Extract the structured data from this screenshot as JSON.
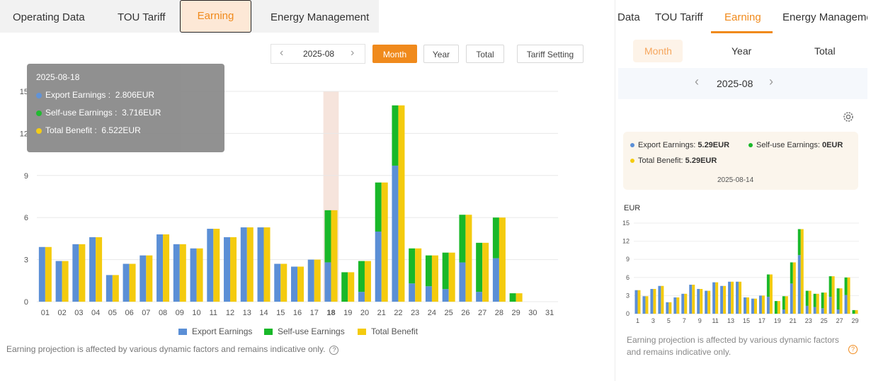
{
  "tabs": [
    "Operating Data",
    "TOU Tariff",
    "Earning",
    "Energy Management"
  ],
  "controls": {
    "prev": "‹",
    "month_value": "2025-08",
    "next": "›",
    "month": "Month",
    "year": "Year",
    "total": "Total",
    "tariff_setting": "Tariff Setting"
  },
  "tooltip": {
    "date": "2025-08-18",
    "export_label": "Export Earnings :",
    "export_value": "2.806EUR",
    "selfuse_label": "Self-use Earnings :",
    "selfuse_value": "3.716EUR",
    "total_label": "Total Benefit :",
    "total_value": "6.522EUR"
  },
  "note": "Earning projection is affected by various dynamic factors and remains indicative only.",
  "colors": {
    "export": "#5b8fd6",
    "selfuse": "#19b829",
    "total": "#f4cb0e",
    "accent": "#f08a1c",
    "highlight": "#f4ddd3"
  },
  "chart_data": {
    "type": "bar",
    "categories": [
      "01",
      "02",
      "03",
      "04",
      "05",
      "06",
      "07",
      "08",
      "09",
      "10",
      "11",
      "12",
      "13",
      "14",
      "15",
      "16",
      "17",
      "18",
      "19",
      "20",
      "21",
      "22",
      "23",
      "24",
      "25",
      "26",
      "27",
      "28",
      "29",
      "30",
      "31"
    ],
    "highlighted_category": "18",
    "ylim": [
      0,
      15
    ],
    "yticks": [
      0,
      3,
      6,
      9,
      12,
      15
    ],
    "grid": true,
    "legend_position": "bottom",
    "series": [
      {
        "name": "Export Earnings",
        "stacked": true,
        "values": [
          3.9,
          2.9,
          4.1,
          4.6,
          1.9,
          2.7,
          3.3,
          4.8,
          4.1,
          3.8,
          5.2,
          4.6,
          5.3,
          5.3,
          2.7,
          2.5,
          3.0,
          2.806,
          0,
          0.7,
          5.0,
          9.7,
          1.3,
          1.1,
          0.9,
          2.8,
          0.7,
          3.1,
          0,
          0,
          0
        ]
      },
      {
        "name": "Self-use Earnings",
        "stacked": true,
        "values": [
          0,
          0,
          0,
          0,
          0,
          0,
          0,
          0,
          0,
          0,
          0,
          0,
          0,
          0,
          0,
          0,
          0,
          3.716,
          2.1,
          2.2,
          3.5,
          4.3,
          2.5,
          2.2,
          2.6,
          3.4,
          3.5,
          2.9,
          0.6,
          0,
          0
        ]
      },
      {
        "name": "Total Benefit",
        "stacked": false,
        "values": [
          3.9,
          2.9,
          4.1,
          4.6,
          1.9,
          2.7,
          3.3,
          4.8,
          4.1,
          3.8,
          5.2,
          4.6,
          5.3,
          5.3,
          2.7,
          2.5,
          3.0,
          6.522,
          2.1,
          2.9,
          8.5,
          14.0,
          3.8,
          3.3,
          3.5,
          6.2,
          4.2,
          6.0,
          0.6,
          0,
          0
        ]
      }
    ]
  },
  "right": {
    "tabs": [
      "Data",
      "TOU Tariff",
      "Earning",
      "Energy Managemer"
    ],
    "subtabs": [
      "Month",
      "Year",
      "Total"
    ],
    "prev": "‹",
    "month_value": "2025-08",
    "next": "›",
    "card": {
      "export_label": "Export Earnings:",
      "export_value": "5.29EUR",
      "selfuse_label": "Self-use Earnings:",
      "selfuse_value": "0EUR",
      "total_label": "Total Benefit:",
      "total_value": "5.29EUR",
      "date": "2025-08-14"
    },
    "unit": "EUR",
    "note": "Earning projection is affected by various dynamic factors and remains indicative only.",
    "chart_data": {
      "type": "bar",
      "categories": [
        "1",
        "2",
        "3",
        "4",
        "5",
        "6",
        "7",
        "8",
        "9",
        "10",
        "11",
        "12",
        "13",
        "14",
        "15",
        "16",
        "17",
        "18",
        "19",
        "20",
        "21",
        "22",
        "23",
        "24",
        "25",
        "26",
        "27",
        "28",
        "29"
      ],
      "xtick_labels": [
        "1",
        "3",
        "5",
        "7",
        "9",
        "11",
        "13",
        "15",
        "17",
        "19",
        "21",
        "23",
        "25",
        "27",
        "29"
      ],
      "ylabel": "EUR",
      "ylim": [
        0,
        15
      ],
      "yticks": [
        0,
        3,
        6,
        9,
        12,
        15
      ],
      "series": [
        {
          "name": "Export Earnings",
          "values": [
            3.9,
            2.9,
            4.1,
            4.6,
            1.9,
            2.7,
            3.3,
            4.8,
            4.1,
            3.8,
            5.2,
            4.6,
            5.3,
            5.3,
            2.7,
            2.5,
            3.0,
            2.8,
            0,
            0.7,
            5.0,
            9.7,
            1.3,
            1.1,
            0.9,
            2.8,
            0.7,
            3.1,
            0
          ]
        },
        {
          "name": "Self-use Earnings",
          "values": [
            0,
            0,
            0,
            0,
            0,
            0,
            0,
            0,
            0,
            0,
            0,
            0,
            0,
            0,
            0,
            0,
            0,
            3.7,
            2.1,
            2.2,
            3.5,
            4.3,
            2.5,
            2.2,
            2.6,
            3.4,
            3.5,
            2.9,
            0.6
          ]
        },
        {
          "name": "Total Benefit",
          "values": [
            3.9,
            2.9,
            4.1,
            4.6,
            1.9,
            2.7,
            3.3,
            4.8,
            4.1,
            3.8,
            5.2,
            4.6,
            5.3,
            5.3,
            2.7,
            2.5,
            3.0,
            6.5,
            2.1,
            2.9,
            8.5,
            14.0,
            3.8,
            3.3,
            3.5,
            6.2,
            4.2,
            6.0,
            0.6
          ]
        }
      ]
    }
  }
}
